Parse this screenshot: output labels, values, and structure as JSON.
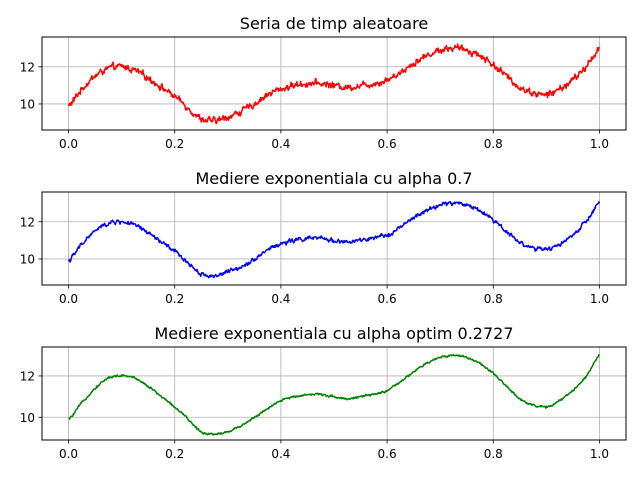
{
  "chart_data": [
    {
      "type": "line",
      "title": "Seria de timp aleatoare",
      "xlabel": "",
      "ylabel": "",
      "xlim": [
        -0.05,
        1.05
      ],
      "ylim": [
        8.6,
        13.6
      ],
      "xticks": [
        0.0,
        0.2,
        0.4,
        0.6,
        0.8,
        1.0
      ],
      "xtick_labels": [
        "0.0",
        "0.2",
        "0.4",
        "0.6",
        "0.8",
        "1.0"
      ],
      "yticks": [
        10,
        12
      ],
      "ytick_labels": [
        "10",
        "12"
      ],
      "grid": true,
      "color": "#ff0000",
      "noise": 0.17,
      "series": [
        {
          "x": [
            0.0,
            0.025,
            0.05,
            0.075,
            0.1,
            0.125,
            0.15,
            0.175,
            0.2,
            0.225,
            0.25,
            0.275,
            0.3,
            0.325,
            0.35,
            0.375,
            0.4,
            0.425,
            0.45,
            0.475,
            0.5,
            0.525,
            0.55,
            0.575,
            0.6,
            0.625,
            0.65,
            0.675,
            0.7,
            0.725,
            0.75,
            0.775,
            0.8,
            0.825,
            0.85,
            0.875,
            0.9,
            0.925,
            0.95,
            0.975,
            1.0
          ],
          "values": [
            9.9,
            10.8,
            11.5,
            11.9,
            12.0,
            11.8,
            11.4,
            10.9,
            10.4,
            9.8,
            9.2,
            9.1,
            9.3,
            9.6,
            10.0,
            10.5,
            10.8,
            11.0,
            11.1,
            11.1,
            11.0,
            10.9,
            11.0,
            11.1,
            11.3,
            11.7,
            12.2,
            12.6,
            12.9,
            13.0,
            12.9,
            12.6,
            12.1,
            11.5,
            10.9,
            10.6,
            10.5,
            10.8,
            11.3,
            12.0,
            13.0
          ]
        }
      ]
    },
    {
      "type": "line",
      "title": "Mediere exponentiala cu alpha 0.7",
      "xlabel": "",
      "ylabel": "",
      "xlim": [
        -0.05,
        1.05
      ],
      "ylim": [
        8.6,
        13.6
      ],
      "xticks": [
        0.0,
        0.2,
        0.4,
        0.6,
        0.8,
        1.0
      ],
      "xtick_labels": [
        "0.0",
        "0.2",
        "0.4",
        "0.6",
        "0.8",
        "1.0"
      ],
      "yticks": [
        10,
        12
      ],
      "ytick_labels": [
        "10",
        "12"
      ],
      "grid": true,
      "color": "#0000ff",
      "noise": 0.11,
      "series": [
        {
          "x": [
            0.0,
            0.025,
            0.05,
            0.075,
            0.1,
            0.125,
            0.15,
            0.175,
            0.2,
            0.225,
            0.25,
            0.275,
            0.3,
            0.325,
            0.35,
            0.375,
            0.4,
            0.425,
            0.45,
            0.475,
            0.5,
            0.525,
            0.55,
            0.575,
            0.6,
            0.625,
            0.65,
            0.675,
            0.7,
            0.725,
            0.75,
            0.775,
            0.8,
            0.825,
            0.85,
            0.875,
            0.9,
            0.925,
            0.95,
            0.975,
            1.0
          ],
          "values": [
            9.9,
            10.8,
            11.5,
            11.9,
            12.0,
            11.8,
            11.4,
            10.9,
            10.4,
            9.8,
            9.2,
            9.1,
            9.3,
            9.6,
            10.0,
            10.5,
            10.8,
            11.0,
            11.1,
            11.1,
            11.0,
            10.9,
            11.0,
            11.1,
            11.3,
            11.7,
            12.2,
            12.6,
            12.9,
            13.0,
            12.9,
            12.6,
            12.1,
            11.5,
            10.9,
            10.6,
            10.5,
            10.8,
            11.3,
            12.0,
            13.0
          ]
        }
      ]
    },
    {
      "type": "line",
      "title": "Mediere exponentiala cu alpha optim 0.2727",
      "xlabel": "",
      "ylabel": "",
      "xlim": [
        -0.05,
        1.05
      ],
      "ylim": [
        8.9,
        13.4
      ],
      "xticks": [
        0.0,
        0.2,
        0.4,
        0.6,
        0.8,
        1.0
      ],
      "xtick_labels": [
        "0.0",
        "0.2",
        "0.4",
        "0.6",
        "0.8",
        "1.0"
      ],
      "yticks": [
        10,
        12
      ],
      "ytick_labels": [
        "10",
        "12"
      ],
      "grid": true,
      "color": "#008000",
      "noise": 0.05,
      "series": [
        {
          "x": [
            0.0,
            0.025,
            0.05,
            0.075,
            0.1,
            0.125,
            0.15,
            0.175,
            0.2,
            0.225,
            0.25,
            0.275,
            0.3,
            0.325,
            0.35,
            0.375,
            0.4,
            0.425,
            0.45,
            0.475,
            0.5,
            0.525,
            0.55,
            0.575,
            0.6,
            0.625,
            0.65,
            0.675,
            0.7,
            0.725,
            0.75,
            0.775,
            0.8,
            0.825,
            0.85,
            0.875,
            0.9,
            0.925,
            0.95,
            0.975,
            1.0
          ],
          "values": [
            9.9,
            10.7,
            11.4,
            11.9,
            12.0,
            11.9,
            11.5,
            11.0,
            10.5,
            9.9,
            9.3,
            9.2,
            9.3,
            9.6,
            10.0,
            10.4,
            10.8,
            11.0,
            11.1,
            11.1,
            11.0,
            10.9,
            11.0,
            11.1,
            11.3,
            11.7,
            12.2,
            12.6,
            12.9,
            13.0,
            12.9,
            12.6,
            12.1,
            11.5,
            10.9,
            10.6,
            10.5,
            10.8,
            11.3,
            12.0,
            13.0
          ]
        }
      ]
    }
  ]
}
